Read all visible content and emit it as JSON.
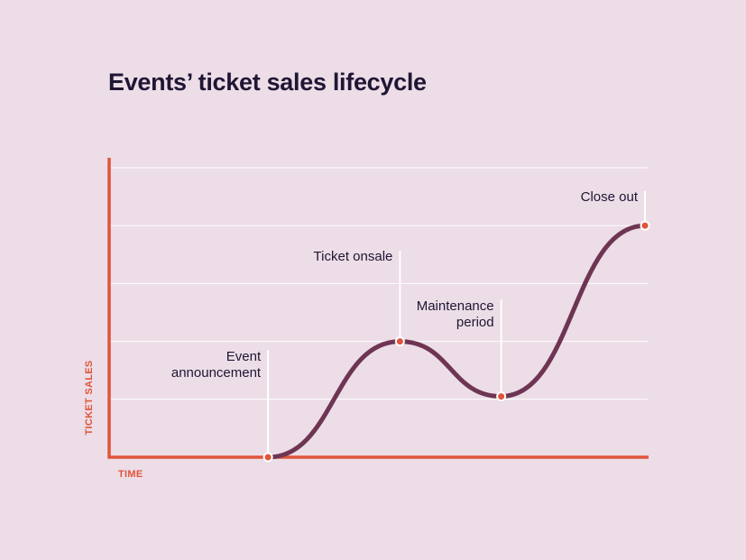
{
  "chart_data": {
    "type": "line",
    "title": "Events’ ticket sales lifecycle",
    "xlabel": "TIME",
    "ylabel": "TICKET SALES",
    "ylim": [
      0,
      5
    ],
    "grid": true,
    "colors": {
      "line": "#6e3553",
      "axis": "#e0543a",
      "point": "#e0543a",
      "grid": "#ffffff",
      "background": "#ecdde7",
      "title": "#1f1634"
    },
    "stages": [
      {
        "label_lines": [
          "Event",
          "announcement"
        ],
        "x": 0.295,
        "y": 0
      },
      {
        "label_lines": [
          "Ticket onsale"
        ],
        "x": 0.54,
        "y": 2
      },
      {
        "label_lines": [
          "Maintenance",
          "period"
        ],
        "x": 0.728,
        "y": 1.05
      },
      {
        "label_lines": [
          "Close out"
        ],
        "x": 0.995,
        "y": 4
      }
    ]
  }
}
